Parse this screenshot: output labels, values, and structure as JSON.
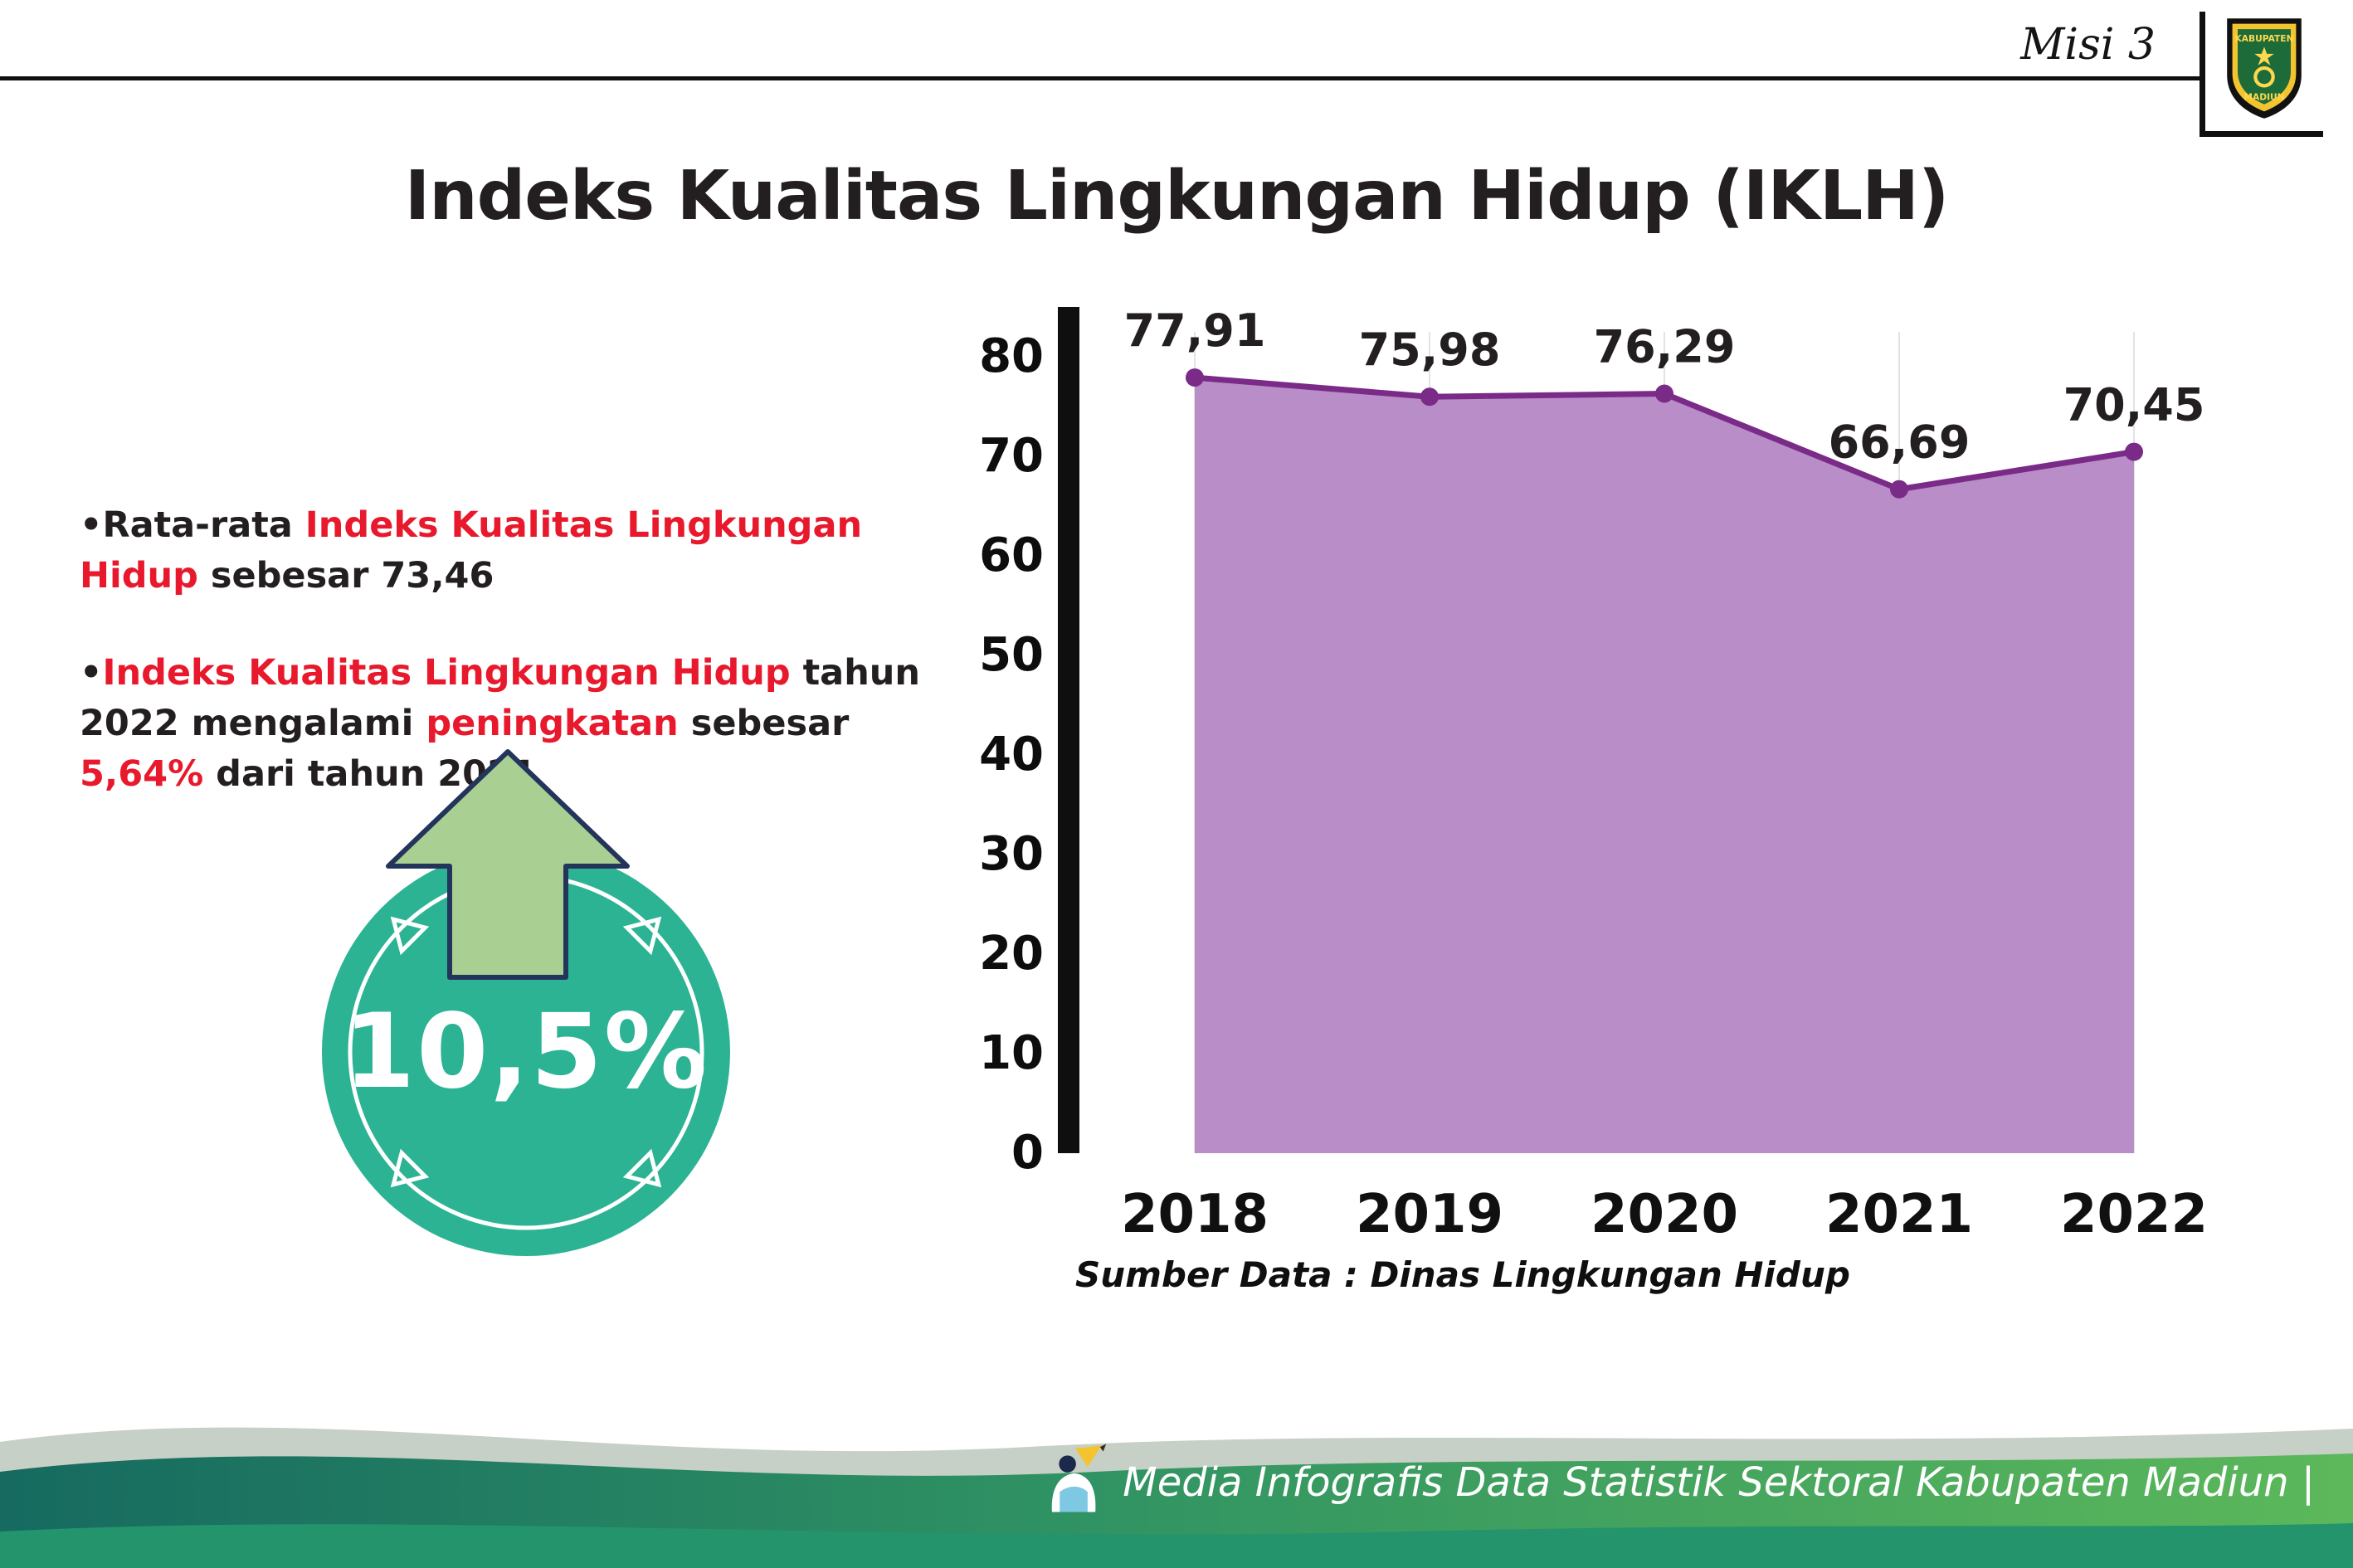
{
  "header": {
    "misi_label": "Misi 3",
    "title": "Indeks Kualitas Lingkungan Hidup (IKLH)",
    "logo": {
      "top_text": "KABUPATEN",
      "bottom_text": "MADIUN"
    }
  },
  "bullet_glyph": "•",
  "bullets": {
    "b1": {
      "pre": "Rata-rata ",
      "red": "Indeks Kualitas Lingkungan Hidup",
      "post": " sebesar 73,46"
    },
    "b2": {
      "red1": "Indeks Kualitas Lingkungan Hidup",
      "mid1": " tahun 2022 mengalami ",
      "red2": "peningkatan",
      "mid2": " sebesar ",
      "red3": "5,64%",
      "post": " dari tahun 2021"
    }
  },
  "badge": {
    "value": "10,5%"
  },
  "chart_data": {
    "type": "area",
    "title": "Indeks Kualitas Lingkungan Hidup (IKLH)",
    "categories": [
      "2018",
      "2019",
      "2020",
      "2021",
      "2022"
    ],
    "values": [
      77.91,
      75.98,
      76.29,
      66.69,
      70.45
    ],
    "point_labels": [
      "77,91",
      "75,98",
      "76,29",
      "66,69",
      "70,45"
    ],
    "ylim": [
      0,
      80
    ],
    "yticks": [
      0,
      10,
      20,
      30,
      40,
      50,
      60,
      70,
      80
    ],
    "grid": "vertical-light",
    "legend": "none",
    "fill_color": "#b98dc7",
    "line_color": "#7a2b88",
    "source_note": "Sumber Data : Dinas Lingkungan Hidup"
  },
  "footer": {
    "credit": "Media Infografis Data Statistik Sektoral Kabupaten Madiun |"
  },
  "colors": {
    "accent_red": "#e8192c",
    "badge_teal": "#2bb394",
    "arrow_green": "#a9cf93",
    "arrow_outline": "#24355c",
    "axis_black": "#0f0f0f"
  }
}
